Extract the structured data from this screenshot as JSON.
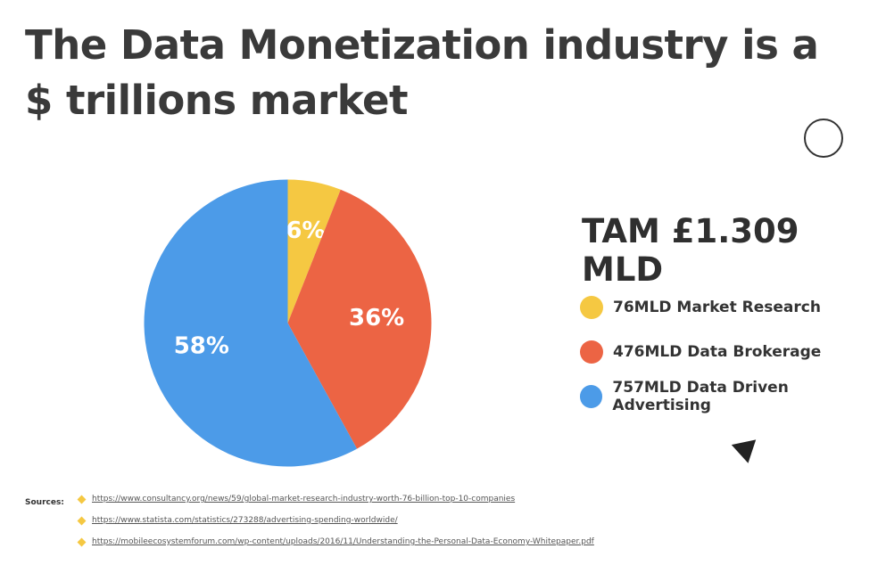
{
  "title": {
    "line1": "The Data Monetization industry is a",
    "line2": "$ trillions market"
  },
  "tam": "TAM £1.309 MLD",
  "chart_data": {
    "type": "pie",
    "slices": [
      {
        "label": "76MLD Market Research",
        "value": 6,
        "display": "6%",
        "color": "#f5c842"
      },
      {
        "label": "476MLD Data Brokerage",
        "value": 36,
        "display": "36%",
        "color": "#ec6444"
      },
      {
        "label": "757MLD Data Driven Advertising",
        "value": 58,
        "display": "58%",
        "color": "#4c9be8"
      }
    ],
    "legend_position": "right"
  },
  "sources": {
    "label": "Sources:",
    "links": [
      "https://www.consultancy.org/news/59/global-market-research-industry-worth-76-billion-top-10-companies",
      "https://www.statista.com/statistics/273288/advertising-spending-worldwide/",
      "https://mobileecosystemforum.com/wp-content/uploads/2016/11/Understanding-the-Personal-Data-Economy-Whitepaper.pdf"
    ]
  }
}
